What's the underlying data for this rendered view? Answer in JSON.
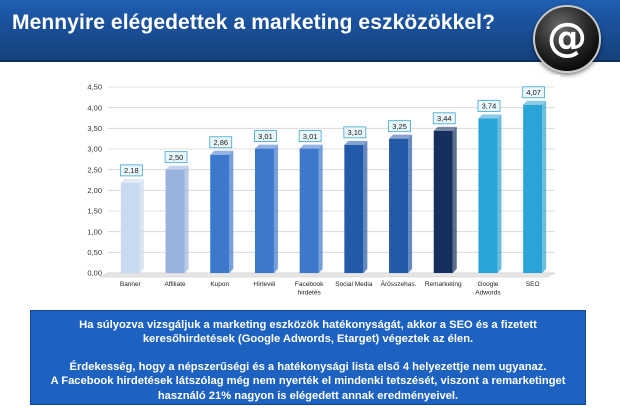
{
  "slide": {
    "title": "Mennyire elégedettek a marketing eszközökkel?",
    "badge_symbol": "@",
    "colors": {
      "header": "#1a4f98",
      "textbox": "#1d62c0"
    }
  },
  "chart_data": {
    "type": "bar",
    "categories": [
      [
        "Banner"
      ],
      [
        "Affiliate"
      ],
      [
        "Kupon"
      ],
      [
        "Hírlevél"
      ],
      [
        "Facebook",
        "hirdetés"
      ],
      [
        "Social Media"
      ],
      [
        "Árösszehas."
      ],
      [
        "Remarketing"
      ],
      [
        "Google",
        "Adwords"
      ],
      [
        "SEO"
      ]
    ],
    "values": [
      2.18,
      2.5,
      2.86,
      3.01,
      3.01,
      3.1,
      3.25,
      3.44,
      3.74,
      4.07
    ],
    "value_labels": [
      "2,18",
      "2,50",
      "2,86",
      "3,01",
      "3,01",
      "3,10",
      "3,25",
      "3,44",
      "3,74",
      "4,07"
    ],
    "bar_colors": [
      "#c9d9ef",
      "#98b3de",
      "#3c78cc",
      "#3c78cc",
      "#3c78cc",
      "#2359a8",
      "#2359a8",
      "#15305e",
      "#2aa3d6",
      "#2aa3d6"
    ],
    "yticks": [
      "0,00",
      "0,50",
      "1,00",
      "1,50",
      "2,00",
      "2,50",
      "3,00",
      "3,50",
      "4,00",
      "4,50"
    ],
    "ylim": [
      0,
      4.5
    ],
    "grid": true,
    "title": "",
    "xlabel": "",
    "ylabel": ""
  },
  "textbox": {
    "line1": "Ha súlyozva vizsgáljuk a marketing eszközök hatékonyságát, akkor a SEO és a fizetett",
    "line2": "keresőhirdetések (Google Adwords, Etarget) végeztek az élen.",
    "line3": "Érdekesség, hogy a népszerűségi és a hatékonysági lista első 4 helyezettje nem ugyanaz.",
    "line4": "A Facebook hirdetések látszólag még nem nyerték el mindenki tetszését, viszont a remarketinget",
    "line5": "használó 21% nagyon is elégedett annak eredményeivel."
  }
}
